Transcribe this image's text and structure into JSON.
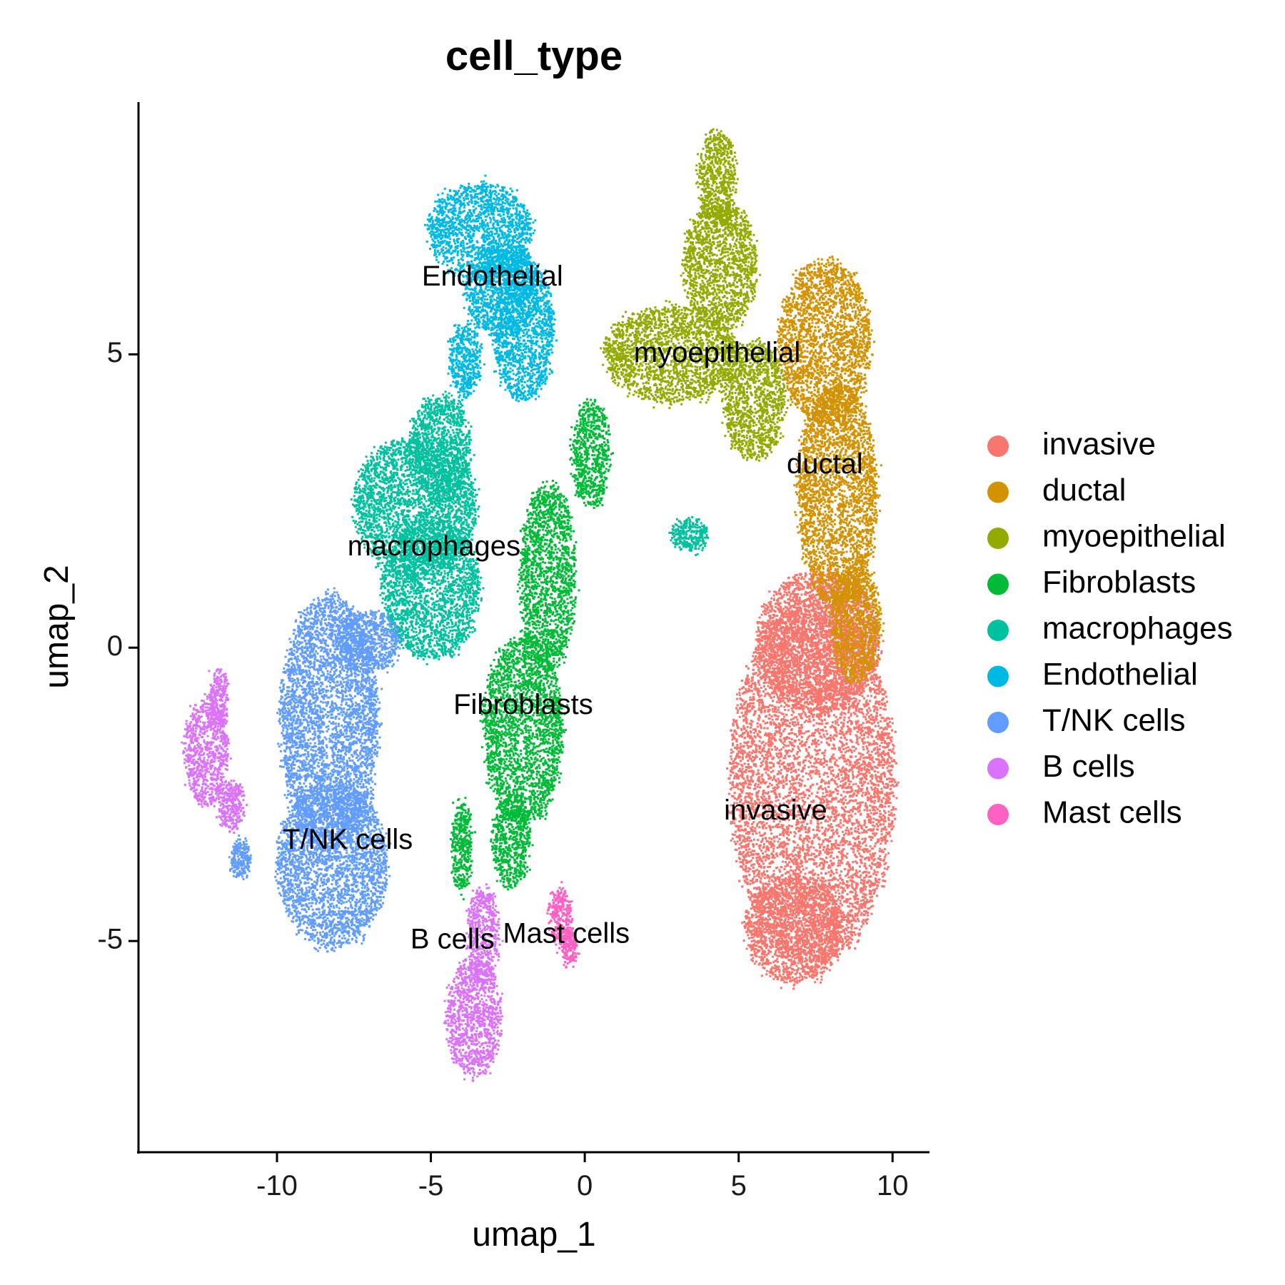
{
  "chart_data": {
    "type": "scatter",
    "title": "cell_type",
    "xlabel": "umap_1",
    "ylabel": "umap_2",
    "xlim": [
      -14.5,
      11.2
    ],
    "ylim": [
      -8.6,
      9.3
    ],
    "xticks": [
      -10,
      -5,
      0,
      5,
      10
    ],
    "yticks": [
      -5,
      0,
      5
    ],
    "xtick_labels": [
      "-10",
      "-5",
      "0",
      "5",
      "10"
    ],
    "ytick_labels": [
      "-5",
      "0",
      "5"
    ],
    "grid": false,
    "legend_position": "right",
    "series": [
      {
        "name": "invasive",
        "color": "#F8766D",
        "label_at": [
          6.2,
          -2.8
        ],
        "regions": [
          [
            7.4,
            -2.3,
            2.7,
            3.1
          ],
          [
            7.6,
            0.1,
            2.0,
            1.2
          ],
          [
            6.8,
            -4.8,
            1.6,
            0.9
          ]
        ]
      },
      {
        "name": "ductal",
        "color": "#D39200",
        "label_at": [
          7.8,
          3.1
        ],
        "regions": [
          [
            7.8,
            5.2,
            1.5,
            1.4
          ],
          [
            8.2,
            2.6,
            1.3,
            1.9
          ],
          [
            8.8,
            0.4,
            0.8,
            1.0
          ]
        ]
      },
      {
        "name": "myoepithelial",
        "color": "#93AA00",
        "label_at": [
          4.3,
          5.0
        ],
        "regions": [
          [
            4.3,
            8.0,
            0.6,
            0.8
          ],
          [
            4.4,
            6.5,
            1.2,
            1.1
          ],
          [
            2.8,
            5.0,
            2.2,
            0.8
          ],
          [
            5.5,
            4.2,
            1.0,
            1.0
          ]
        ]
      },
      {
        "name": "Fibroblasts",
        "color": "#00BA38",
        "label_at": [
          -2.0,
          -1.0
        ],
        "regions": [
          [
            -1.2,
            1.2,
            0.9,
            1.6
          ],
          [
            -2.0,
            -1.4,
            1.3,
            1.6
          ],
          [
            -2.4,
            -3.3,
            0.6,
            0.8
          ],
          [
            0.2,
            3.3,
            0.6,
            0.9
          ],
          [
            -4.0,
            -3.4,
            0.3,
            0.8
          ]
        ]
      },
      {
        "name": "macrophages",
        "color": "#00C19F",
        "label_at": [
          -4.9,
          1.7
        ],
        "regions": [
          [
            -5.5,
            2.4,
            2.0,
            1.2
          ],
          [
            -5.0,
            1.0,
            1.6,
            1.2
          ],
          [
            -4.7,
            3.4,
            1.0,
            0.9
          ],
          [
            3.4,
            1.9,
            0.6,
            0.25
          ]
        ]
      },
      {
        "name": "Endothelial",
        "color": "#00B9E3",
        "label_at": [
          -3.0,
          6.3
        ],
        "regions": [
          [
            -3.4,
            7.1,
            1.7,
            0.8
          ],
          [
            -2.0,
            5.4,
            1.0,
            1.2
          ],
          [
            -2.7,
            6.1,
            1.2,
            0.8
          ],
          [
            -3.9,
            4.9,
            0.5,
            0.6
          ]
        ]
      },
      {
        "name": "T/NK cells",
        "color": "#619CFF",
        "label_at": [
          -7.7,
          -3.3
        ],
        "regions": [
          [
            -8.3,
            -1.3,
            1.6,
            2.2
          ],
          [
            -8.2,
            -3.7,
            1.8,
            1.4
          ],
          [
            -7.0,
            0.1,
            1.0,
            0.5
          ],
          [
            -11.2,
            -3.6,
            0.3,
            0.3
          ]
        ]
      },
      {
        "name": "B cells",
        "color": "#DB72FB",
        "label_at": [
          -4.3,
          -5.0
        ],
        "regions": [
          [
            -12.3,
            -1.8,
            0.7,
            0.9
          ],
          [
            -11.9,
            -0.9,
            0.3,
            0.5
          ],
          [
            -11.5,
            -2.7,
            0.4,
            0.4
          ],
          [
            -3.6,
            -6.3,
            0.9,
            1.0
          ],
          [
            -3.3,
            -4.9,
            0.5,
            0.8
          ]
        ]
      },
      {
        "name": "Mast cells",
        "color": "#FF61C3",
        "label_at": [
          -0.6,
          -4.9
        ],
        "regions": [
          [
            -0.8,
            -4.6,
            0.35,
            0.45
          ],
          [
            -0.5,
            -5.1,
            0.2,
            0.3
          ]
        ]
      }
    ]
  }
}
